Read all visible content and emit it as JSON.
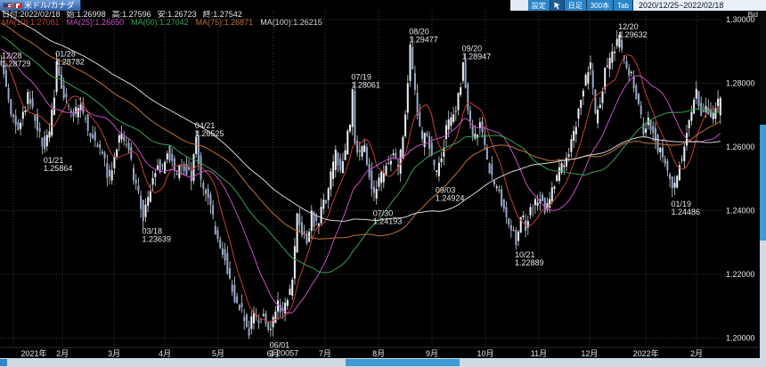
{
  "header": {
    "tab_label": "米ドル/カナダ",
    "settings_label": "設定",
    "timeframe_label": "日足",
    "bar_count_label": "300本",
    "tab_button_label": "Tab",
    "date_range": "2020/12/25~2022/02/18"
  },
  "info": {
    "ohlc": {
      "date": "日付:2022/02/18",
      "open": "始:1.26998",
      "high": "高:1.27596",
      "low": "安:1.26723",
      "close": "終:1.27542"
    }
  },
  "axis": {
    "bid_label": "Bid",
    "y_ticks": [
      {
        "label": "1.30000",
        "price": 1.3
      },
      {
        "label": "1.28000",
        "price": 1.28
      },
      {
        "label": "1.26000",
        "price": 1.26
      },
      {
        "label": "1.24000",
        "price": 1.24
      },
      {
        "label": "1.22000",
        "price": 1.22
      },
      {
        "label": "1.20000",
        "price": 1.2
      }
    ],
    "x_ticks": [
      {
        "label": "2021年",
        "idx": 5
      },
      {
        "label": "2月",
        "idx": 25.4
      },
      {
        "label": "3月",
        "idx": 46.9
      },
      {
        "label": "4月",
        "idx": 68
      },
      {
        "label": "5月",
        "idx": 90.2
      },
      {
        "label": "6月",
        "idx": 113
      },
      {
        "label": "7月",
        "idx": 134.6
      },
      {
        "label": "8月",
        "idx": 156.9
      },
      {
        "label": "9月",
        "idx": 179.1
      },
      {
        "label": "10月",
        "idx": 201.3
      },
      {
        "label": "11月",
        "idx": 223.5
      },
      {
        "label": "12月",
        "idx": 244.6
      },
      {
        "label": "2022年",
        "idx": 268
      },
      {
        "label": "2月",
        "idx": 289.1
      }
    ]
  },
  "chart_data": {
    "type": "candlestick",
    "pair": "米ドル/カナダ",
    "timeframe": "日足",
    "bars": 300,
    "range": "2020/12/25~2022/02/18",
    "ylim": [
      1.197,
      1.303
    ],
    "last_bar": {
      "date": "2022/02/18",
      "open": 1.26998,
      "high": 1.27596,
      "low": 1.26723,
      "close": 1.27542
    },
    "moving_averages": [
      {
        "name": "MA(10)",
        "window": 10,
        "value": 1.27081,
        "display": "MA(10):1.27081",
        "color": "#c04038"
      },
      {
        "name": "MA(25)",
        "window": 25,
        "value": 1.2665,
        "display": "MA(25):1.26650",
        "color": "#c84fc8"
      },
      {
        "name": "MA(50)",
        "window": 50,
        "value": 1.27042,
        "display": "MA(50):1.27042",
        "color": "#38a055",
        "": ""
      },
      {
        "name": "MA(75)",
        "window": 75,
        "value": 1.26871,
        "display": "MA(75):1.26871",
        "color": "#bd7335"
      },
      {
        "name": "MA(100)",
        "window": 100,
        "value": 1.26215,
        "display": "MA(100):1.26215",
        "color": "#d6d6d6"
      }
    ],
    "annotations": [
      {
        "date": "12/28",
        "price": 1.28729,
        "price_label": "1.28729",
        "side": "high",
        "idx": 1
      },
      {
        "date": "01/21",
        "price": 1.25864,
        "price_label": "1.25864",
        "side": "low",
        "idx": 19
      },
      {
        "date": "01/28",
        "price": 1.28782,
        "price_label": "1.28782",
        "side": "high",
        "idx": 24
      },
      {
        "date": "03/18",
        "price": 1.23639,
        "price_label": "1.23639",
        "side": "low",
        "idx": 60
      },
      {
        "date": "04/21",
        "price": 1.26525,
        "price_label": "1.26525",
        "side": "high",
        "idx": 82
      },
      {
        "date": "06/01",
        "price": 1.20057,
        "price_label": "1.20057",
        "side": "low",
        "idx": 113
      },
      {
        "date": "07/19",
        "price": 1.28061,
        "price_label": "1.28061",
        "side": "high",
        "idx": 147
      },
      {
        "date": "07/30",
        "price": 1.24193,
        "price_label": "1.24193",
        "side": "low",
        "idx": 156
      },
      {
        "date": "08/20",
        "price": 1.29477,
        "price_label": "1.29477",
        "side": "high",
        "idx": 171
      },
      {
        "date": "09/03",
        "price": 1.24924,
        "price_label": "1.24924",
        "side": "low",
        "idx": 182
      },
      {
        "date": "09/20",
        "price": 1.28947,
        "price_label": "1.28947",
        "side": "high",
        "idx": 193
      },
      {
        "date": "10/21",
        "price": 1.22889,
        "price_label": "1.22889",
        "side": "low",
        "idx": 215
      },
      {
        "date": "12/20",
        "price": 1.29632,
        "price_label": "1.29632",
        "side": "high",
        "idx": 258
      },
      {
        "date": "01/19",
        "price": 1.24486,
        "price_label": "1.24486",
        "side": "low",
        "idx": 280
      }
    ],
    "price_path_anchors": [
      [
        0,
        1.286
      ],
      [
        1,
        1.2872
      ],
      [
        2,
        1.283
      ],
      [
        3,
        1.278
      ],
      [
        5,
        1.27
      ],
      [
        8,
        1.2645
      ],
      [
        10,
        1.27
      ],
      [
        12,
        1.276
      ],
      [
        14,
        1.2715
      ],
      [
        16,
        1.267
      ],
      [
        19,
        1.2592
      ],
      [
        21,
        1.265
      ],
      [
        23,
        1.276
      ],
      [
        24,
        1.2862
      ],
      [
        26,
        1.279
      ],
      [
        28,
        1.2745
      ],
      [
        31,
        1.27
      ],
      [
        34,
        1.273
      ],
      [
        37,
        1.266
      ],
      [
        40,
        1.262
      ],
      [
        43,
        1.258
      ],
      [
        46,
        1.249
      ],
      [
        48,
        1.258
      ],
      [
        50,
        1.264
      ],
      [
        53,
        1.262
      ],
      [
        55,
        1.2545
      ],
      [
        57,
        1.248
      ],
      [
        59,
        1.242
      ],
      [
        60,
        1.2375
      ],
      [
        62,
        1.244
      ],
      [
        64,
        1.25
      ],
      [
        66,
        1.2545
      ],
      [
        68,
        1.253
      ],
      [
        70,
        1.259
      ],
      [
        72,
        1.255
      ],
      [
        74,
        1.2515
      ],
      [
        76,
        1.2555
      ],
      [
        78,
        1.2525
      ],
      [
        80,
        1.25
      ],
      [
        82,
        1.2625
      ],
      [
        83,
        1.2555
      ],
      [
        84,
        1.2505
      ],
      [
        86,
        1.246
      ],
      [
        88,
        1.241
      ],
      [
        90,
        1.233
      ],
      [
        92,
        1.229
      ],
      [
        94,
        1.225
      ],
      [
        96,
        1.218
      ],
      [
        98,
        1.213
      ],
      [
        100,
        1.2095
      ],
      [
        102,
        1.2065
      ],
      [
        104,
        1.2025
      ],
      [
        106,
        1.2075
      ],
      [
        108,
        1.205
      ],
      [
        110,
        1.2085
      ],
      [
        112,
        1.204
      ],
      [
        113,
        1.202
      ],
      [
        114,
        1.206
      ],
      [
        116,
        1.2105
      ],
      [
        118,
        1.2085
      ],
      [
        120,
        1.2125
      ],
      [
        122,
        1.2175
      ],
      [
        124,
        1.2395
      ],
      [
        126,
        1.234
      ],
      [
        128,
        1.229
      ],
      [
        130,
        1.2385
      ],
      [
        132,
        1.235
      ],
      [
        134,
        1.2395
      ],
      [
        136,
        1.244
      ],
      [
        138,
        1.251
      ],
      [
        140,
        1.258
      ],
      [
        142,
        1.2525
      ],
      [
        144,
        1.259
      ],
      [
        146,
        1.268
      ],
      [
        147,
        1.2775
      ],
      [
        148,
        1.262
      ],
      [
        150,
        1.2575
      ],
      [
        152,
        1.2605
      ],
      [
        154,
        1.252
      ],
      [
        156,
        1.2445
      ],
      [
        158,
        1.249
      ],
      [
        160,
        1.2525
      ],
      [
        162,
        1.2555
      ],
      [
        164,
        1.2585
      ],
      [
        166,
        1.253
      ],
      [
        168,
        1.2625
      ],
      [
        170,
        1.28
      ],
      [
        171,
        1.2915
      ],
      [
        172,
        1.284
      ],
      [
        174,
        1.27
      ],
      [
        176,
        1.2615
      ],
      [
        178,
        1.264
      ],
      [
        180,
        1.256
      ],
      [
        182,
        1.2515
      ],
      [
        184,
        1.2575
      ],
      [
        186,
        1.2655
      ],
      [
        188,
        1.2685
      ],
      [
        190,
        1.2715
      ],
      [
        192,
        1.2805
      ],
      [
        193,
        1.2865
      ],
      [
        195,
        1.27
      ],
      [
        197,
        1.263
      ],
      [
        199,
        1.265
      ],
      [
        200,
        1.268
      ],
      [
        202,
        1.259
      ],
      [
        204,
        1.253
      ],
      [
        206,
        1.247
      ],
      [
        208,
        1.245
      ],
      [
        210,
        1.24
      ],
      [
        212,
        1.237
      ],
      [
        214,
        1.233
      ],
      [
        215,
        1.2305
      ],
      [
        217,
        1.238
      ],
      [
        219,
        1.2355
      ],
      [
        221,
        1.2395
      ],
      [
        223,
        1.243
      ],
      [
        225,
        1.245
      ],
      [
        227,
        1.2405
      ],
      [
        229,
        1.244
      ],
      [
        231,
        1.248
      ],
      [
        233,
        1.252
      ],
      [
        235,
        1.2555
      ],
      [
        237,
        1.259
      ],
      [
        239,
        1.264
      ],
      [
        241,
        1.272
      ],
      [
        243,
        1.279
      ],
      [
        245,
        1.283
      ],
      [
        246,
        1.285
      ],
      [
        248,
        1.269
      ],
      [
        250,
        1.273
      ],
      [
        252,
        1.284
      ],
      [
        254,
        1.288
      ],
      [
        256,
        1.2915
      ],
      [
        258,
        1.294
      ],
      [
        259,
        1.29
      ],
      [
        261,
        1.286
      ],
      [
        263,
        1.282
      ],
      [
        265,
        1.276
      ],
      [
        267,
        1.269
      ],
      [
        268,
        1.2645
      ],
      [
        270,
        1.268
      ],
      [
        272,
        1.2645
      ],
      [
        274,
        1.26
      ],
      [
        276,
        1.256
      ],
      [
        278,
        1.252
      ],
      [
        280,
        1.2465
      ],
      [
        282,
        1.251
      ],
      [
        284,
        1.257
      ],
      [
        286,
        1.265
      ],
      [
        288,
        1.2715
      ],
      [
        290,
        1.277
      ],
      [
        292,
        1.2705
      ],
      [
        294,
        1.2735
      ],
      [
        296,
        1.269
      ],
      [
        298,
        1.2715
      ],
      [
        299,
        1.2754
      ]
    ]
  }
}
